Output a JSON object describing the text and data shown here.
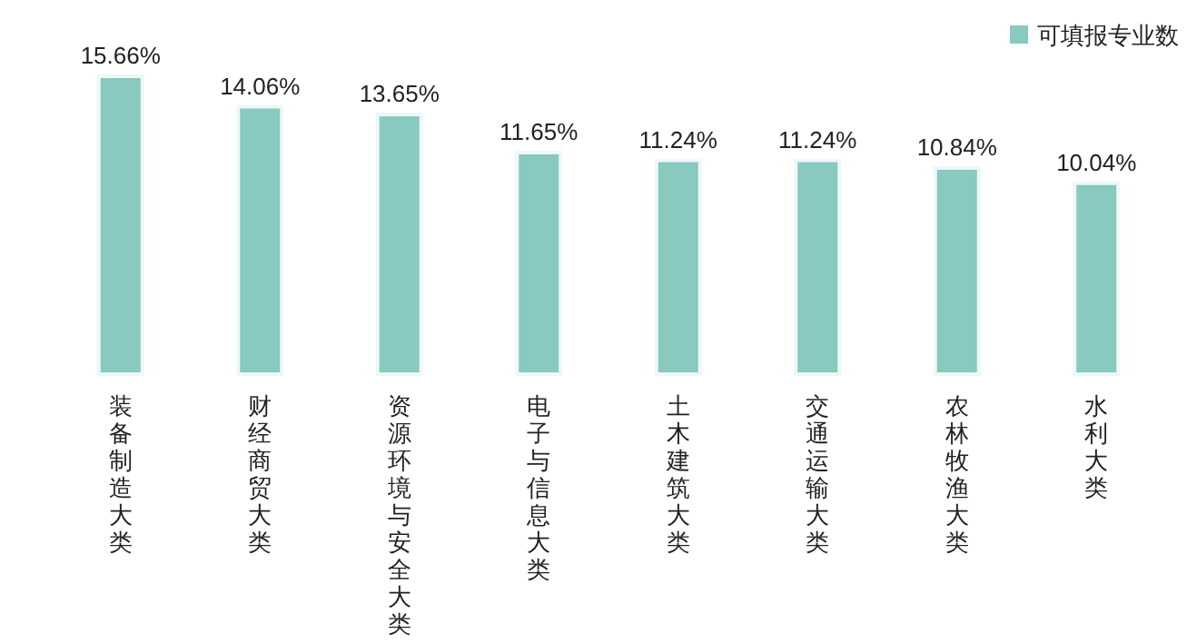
{
  "chart_data": {
    "type": "bar",
    "categories": [
      "装备制造大类",
      "财经商贸大类",
      "资源环境与安全大类",
      "电子与信息大类",
      "土木建筑大类",
      "交通运输大类",
      "农林牧渔大类",
      "水利大类"
    ],
    "series": [
      {
        "name": "可填报专业数",
        "color": "#88c9c0",
        "values": [
          15.66,
          14.06,
          13.65,
          11.65,
          11.24,
          11.24,
          10.84,
          10.04
        ],
        "value_labels": [
          "15.66%",
          "14.06%",
          "13.65%",
          "11.65%",
          "11.24%",
          "11.24%",
          "10.84%",
          "10.04%"
        ]
      }
    ],
    "legend": "top right"
  }
}
